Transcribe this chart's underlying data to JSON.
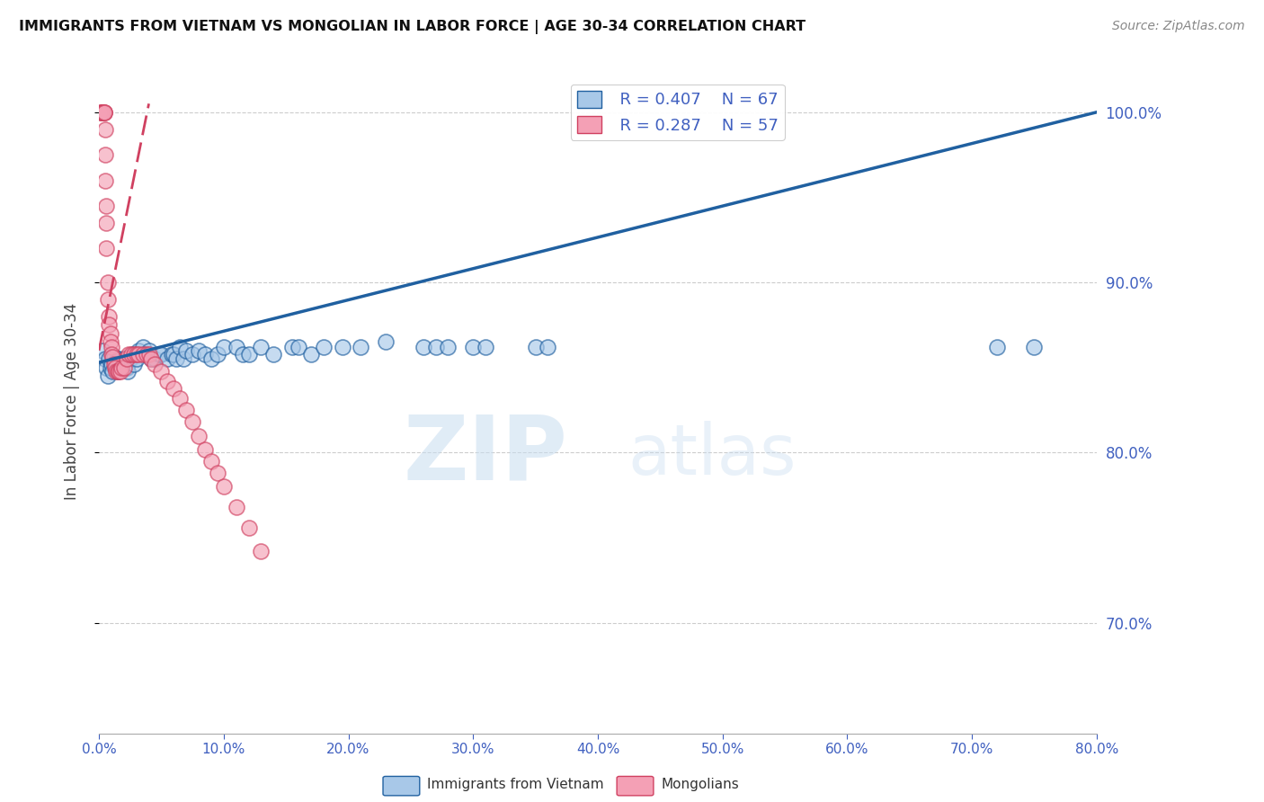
{
  "title": "IMMIGRANTS FROM VIETNAM VS MONGOLIAN IN LABOR FORCE | AGE 30-34 CORRELATION CHART",
  "source": "Source: ZipAtlas.com",
  "ylabel": "In Labor Force | Age 30-34",
  "legend1_label": "Immigrants from Vietnam",
  "legend2_label": "Mongolians",
  "r1": 0.407,
  "n1": 67,
  "r2": 0.287,
  "n2": 57,
  "color_blue": "#a8c8e8",
  "color_pink": "#f4a0b5",
  "color_blue_line": "#2060a0",
  "color_pink_line": "#d04060",
  "axis_color": "#4060c0",
  "xmin": 0.0,
  "xmax": 0.8,
  "ymin": 0.635,
  "ymax": 1.025,
  "yticks": [
    0.7,
    0.8,
    0.9,
    1.0
  ],
  "xticks": [
    0.0,
    0.1,
    0.2,
    0.3,
    0.4,
    0.5,
    0.6,
    0.7,
    0.8
  ],
  "watermark": "ZIPatlas",
  "vietnam_x": [
    0.003,
    0.005,
    0.006,
    0.007,
    0.008,
    0.009,
    0.01,
    0.011,
    0.012,
    0.013,
    0.014,
    0.015,
    0.016,
    0.017,
    0.018,
    0.019,
    0.02,
    0.021,
    0.022,
    0.023,
    0.025,
    0.027,
    0.028,
    0.03,
    0.032,
    0.035,
    0.037,
    0.04,
    0.042,
    0.045,
    0.048,
    0.05,
    0.055,
    0.058,
    0.06,
    0.062,
    0.065,
    0.068,
    0.07,
    0.075,
    0.08,
    0.085,
    0.09,
    0.095,
    0.1,
    0.11,
    0.115,
    0.12,
    0.13,
    0.14,
    0.155,
    0.16,
    0.17,
    0.18,
    0.195,
    0.21,
    0.23,
    0.26,
    0.27,
    0.28,
    0.3,
    0.31,
    0.35,
    0.36,
    0.72,
    0.75
  ],
  "vietnam_y": [
    0.86,
    0.855,
    0.85,
    0.845,
    0.855,
    0.85,
    0.852,
    0.848,
    0.856,
    0.853,
    0.85,
    0.848,
    0.855,
    0.852,
    0.85,
    0.853,
    0.855,
    0.855,
    0.85,
    0.848,
    0.855,
    0.858,
    0.852,
    0.855,
    0.86,
    0.862,
    0.858,
    0.86,
    0.855,
    0.855,
    0.858,
    0.858,
    0.855,
    0.858,
    0.858,
    0.855,
    0.862,
    0.855,
    0.86,
    0.858,
    0.86,
    0.858,
    0.855,
    0.858,
    0.862,
    0.862,
    0.858,
    0.858,
    0.862,
    0.858,
    0.862,
    0.862,
    0.858,
    0.862,
    0.862,
    0.862,
    0.865,
    0.862,
    0.862,
    0.862,
    0.862,
    0.862,
    0.862,
    0.862,
    0.862,
    0.862
  ],
  "mongolia_x": [
    0.001,
    0.002,
    0.002,
    0.003,
    0.003,
    0.004,
    0.004,
    0.004,
    0.005,
    0.005,
    0.005,
    0.006,
    0.006,
    0.006,
    0.007,
    0.007,
    0.008,
    0.008,
    0.009,
    0.009,
    0.01,
    0.01,
    0.011,
    0.012,
    0.013,
    0.014,
    0.015,
    0.016,
    0.017,
    0.018,
    0.02,
    0.022,
    0.024,
    0.026,
    0.028,
    0.03,
    0.032,
    0.035,
    0.038,
    0.04,
    0.042,
    0.045,
    0.05,
    0.055,
    0.06,
    0.065,
    0.07,
    0.075,
    0.08,
    0.085,
    0.09,
    0.095,
    0.1,
    0.11,
    0.12,
    0.13
  ],
  "mongolia_y": [
    1.0,
    1.0,
    1.0,
    1.0,
    1.0,
    1.0,
    1.0,
    1.0,
    0.99,
    0.975,
    0.96,
    0.945,
    0.935,
    0.92,
    0.9,
    0.89,
    0.88,
    0.875,
    0.87,
    0.865,
    0.862,
    0.858,
    0.856,
    0.852,
    0.85,
    0.848,
    0.848,
    0.848,
    0.848,
    0.85,
    0.85,
    0.855,
    0.858,
    0.858,
    0.858,
    0.858,
    0.858,
    0.858,
    0.858,
    0.858,
    0.855,
    0.852,
    0.848,
    0.842,
    0.838,
    0.832,
    0.825,
    0.818,
    0.81,
    0.802,
    0.795,
    0.788,
    0.78,
    0.768,
    0.756,
    0.742
  ],
  "viet_trend_x0": 0.0,
  "viet_trend_y0": 0.853,
  "viet_trend_x1": 0.8,
  "viet_trend_y1": 1.0,
  "mong_trend_x0": 0.0,
  "mong_trend_y0": 0.86,
  "mong_trend_x1": 0.04,
  "mong_trend_y1": 1.005
}
